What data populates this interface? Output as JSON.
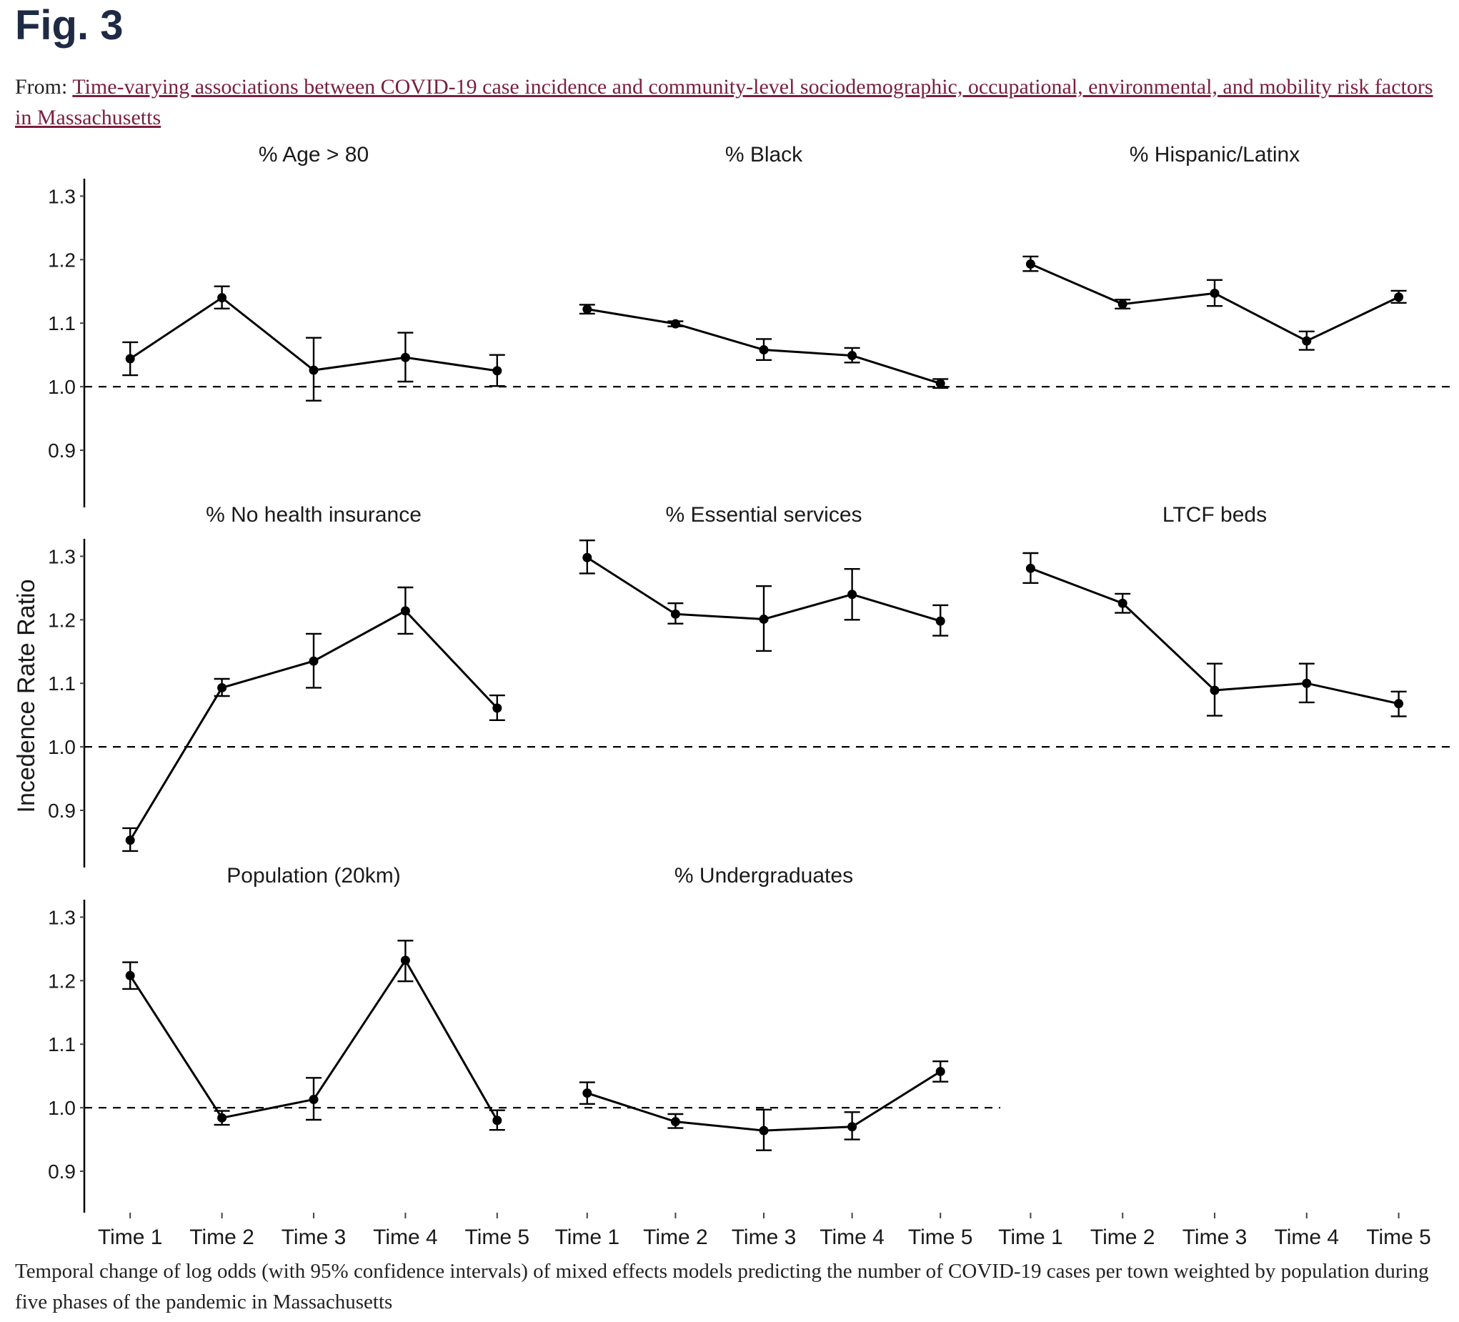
{
  "figure": {
    "title": "Fig. 3",
    "from_prefix": "From:",
    "from_link": "Time-varying associations between COVID-19 case incidence and community-level sociodemographic, occupational, environmental, and mobility risk factors in Massachusetts",
    "caption": "Temporal change of log odds (with 95% confidence intervals) of mixed effects models predicting the number of COVID-19 cases per town weighted by population during five phases of the pandemic in Massachusetts"
  },
  "colors": {
    "title": "#1f2a44",
    "link": "#7a1f3d",
    "series": "#000000"
  },
  "chart_data": {
    "type": "line",
    "subtype": "faceted point-range with error bars",
    "ylabel": "Incedence Rate Ratio",
    "ylim": [
      0.81,
      1.35
    ],
    "yticks": [
      0.9,
      1.0,
      1.1,
      1.2,
      1.3
    ],
    "ytick_labels": [
      "0.9",
      "1.0",
      "1.1",
      "1.2",
      "1.3"
    ],
    "reference_line": 1.0,
    "x": [
      "Time 1",
      "Time 2",
      "Time 3",
      "Time 4",
      "Time 5"
    ],
    "grid": false,
    "layout_grid": "3x3",
    "panels": [
      {
        "title": "% Age > 80",
        "values": [
          1.044,
          1.14,
          1.026,
          1.046,
          1.025
        ],
        "lower": [
          1.018,
          1.123,
          0.978,
          1.008,
          1.001
        ],
        "upper": [
          1.07,
          1.158,
          1.077,
          1.085,
          1.05
        ]
      },
      {
        "title": "% Black",
        "values": [
          1.122,
          1.099,
          1.058,
          1.049,
          1.005
        ],
        "lower": [
          1.115,
          1.095,
          1.042,
          1.038,
          0.998
        ],
        "upper": [
          1.129,
          1.103,
          1.075,
          1.061,
          1.012
        ]
      },
      {
        "title": "% Hispanic/Latinx",
        "values": [
          1.193,
          1.13,
          1.147,
          1.072,
          1.141
        ],
        "lower": [
          1.182,
          1.123,
          1.127,
          1.058,
          1.132
        ],
        "upper": [
          1.205,
          1.137,
          1.168,
          1.087,
          1.151
        ]
      },
      {
        "title": "% No health insurance",
        "values": [
          0.853,
          1.093,
          1.135,
          1.214,
          1.061
        ],
        "lower": [
          0.836,
          1.08,
          1.093,
          1.178,
          1.042
        ],
        "upper": [
          0.872,
          1.107,
          1.178,
          1.251,
          1.081
        ]
      },
      {
        "title": "% Essential services",
        "values": [
          1.298,
          1.209,
          1.201,
          1.24,
          1.198
        ],
        "lower": [
          1.273,
          1.194,
          1.151,
          1.2,
          1.175
        ],
        "upper": [
          1.325,
          1.226,
          1.253,
          1.28,
          1.223
        ]
      },
      {
        "title": "LTCF beds",
        "values": [
          1.281,
          1.226,
          1.089,
          1.1,
          1.068
        ],
        "lower": [
          1.258,
          1.211,
          1.049,
          1.07,
          1.048
        ],
        "upper": [
          1.305,
          1.241,
          1.131,
          1.131,
          1.087
        ]
      },
      {
        "title": "Population (20km)",
        "values": [
          1.208,
          0.984,
          1.013,
          1.232,
          0.98
        ],
        "lower": [
          1.187,
          0.973,
          0.981,
          1.199,
          0.965
        ],
        "upper": [
          1.229,
          0.995,
          1.047,
          1.263,
          0.996
        ]
      },
      {
        "title": "% Undergraduates",
        "values": [
          1.023,
          0.978,
          0.964,
          0.97,
          1.057
        ],
        "lower": [
          1.006,
          0.968,
          0.933,
          0.95,
          1.041
        ],
        "upper": [
          1.04,
          0.99,
          0.997,
          0.993,
          1.073
        ]
      }
    ]
  }
}
